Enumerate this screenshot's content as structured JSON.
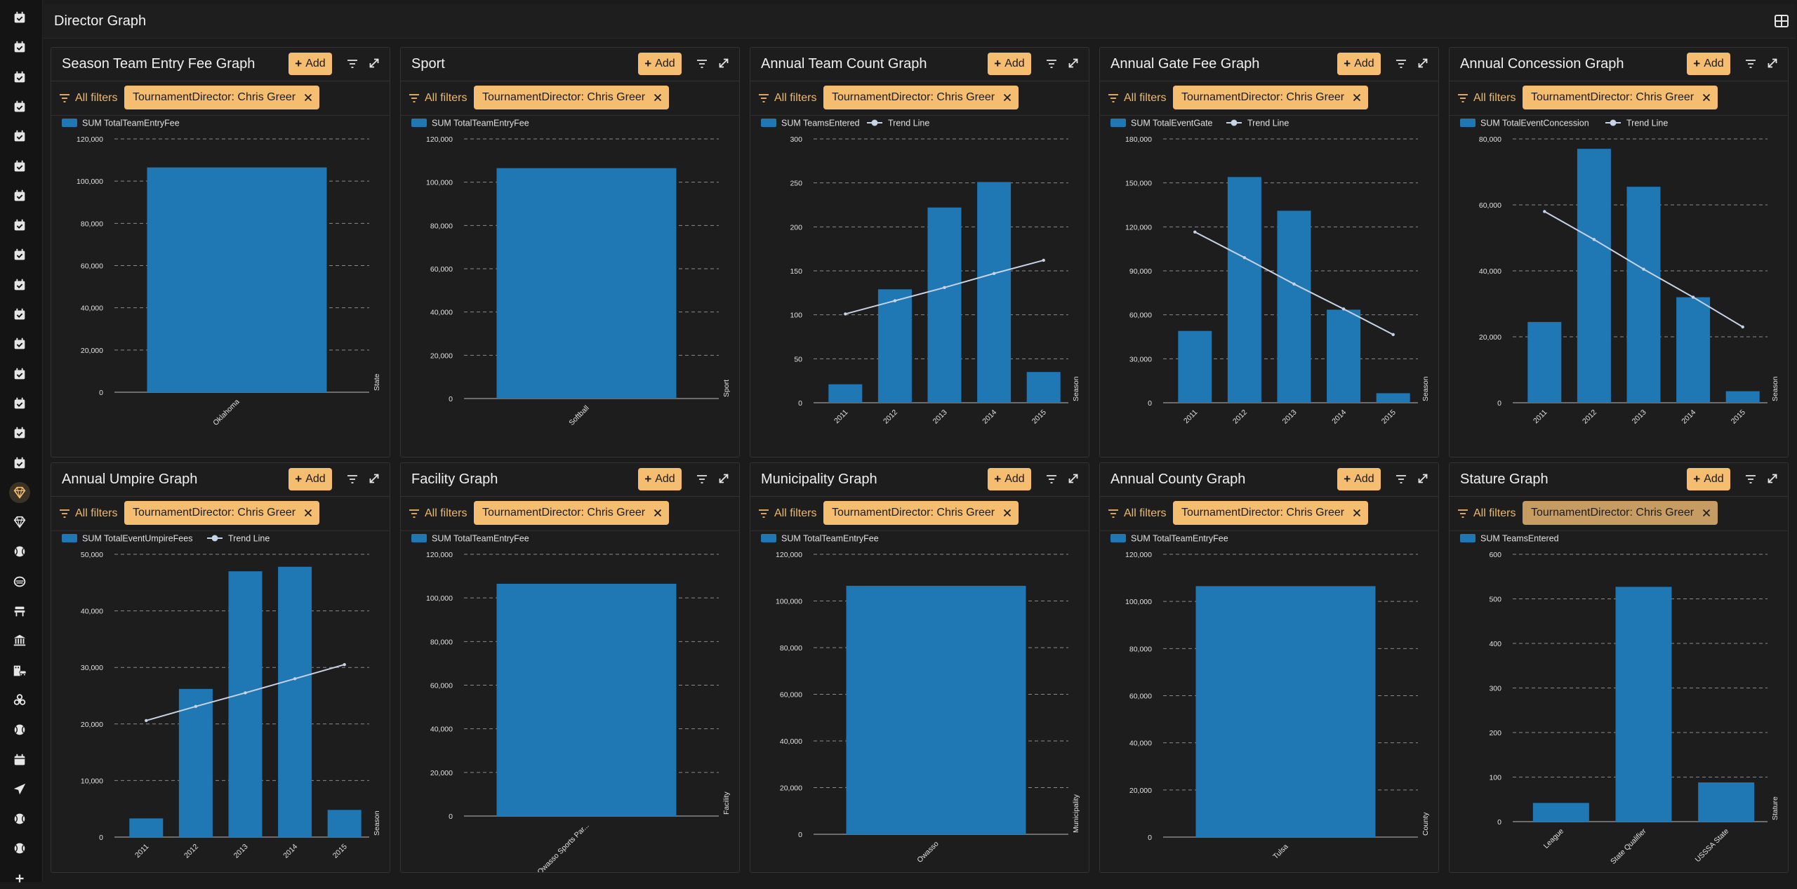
{
  "page": {
    "title": "Director Graph"
  },
  "theme": {
    "accent": "#f5bd6f",
    "bar": "#1f77b4",
    "trend": "#c7d3e6",
    "grid": "#8a8a8a"
  },
  "sidebar": {
    "items": [
      {
        "icon": "calendar-check-icon"
      },
      {
        "icon": "calendar-check-icon"
      },
      {
        "icon": "calendar-check-icon"
      },
      {
        "icon": "calendar-check-icon"
      },
      {
        "icon": "calendar-check-icon"
      },
      {
        "icon": "calendar-check-icon"
      },
      {
        "icon": "calendar-check-icon"
      },
      {
        "icon": "calendar-check-icon"
      },
      {
        "icon": "calendar-check-icon"
      },
      {
        "icon": "calendar-check-icon"
      },
      {
        "icon": "calendar-check-icon"
      },
      {
        "icon": "calendar-check-icon"
      },
      {
        "icon": "calendar-check-icon"
      },
      {
        "icon": "calendar-check-icon"
      },
      {
        "icon": "calendar-check-icon"
      },
      {
        "icon": "calendar-check-icon"
      },
      {
        "icon": "diamond-icon",
        "active": true
      },
      {
        "icon": "diamond-icon"
      },
      {
        "icon": "ball-icon"
      },
      {
        "icon": "mask-icon"
      },
      {
        "icon": "bench-icon"
      },
      {
        "icon": "bank-icon"
      },
      {
        "icon": "building-car-icon"
      },
      {
        "icon": "biohazard-icon"
      },
      {
        "icon": "ball-icon"
      },
      {
        "icon": "calendar-icon"
      },
      {
        "icon": "send-icon"
      },
      {
        "icon": "ball-icon"
      },
      {
        "icon": "ball-icon"
      },
      {
        "icon": "plus-icon"
      }
    ]
  },
  "common": {
    "add_label": "Add",
    "all_filters_label": "All filters",
    "filter_chip": "TournamentDirector: Chris Greer"
  },
  "panels": [
    {
      "title": "Season Team Entry Fee Graph",
      "chart_data": {
        "type": "bar",
        "categories": [
          "Oklahoma"
        ],
        "x_axis_name": "State",
        "series": [
          {
            "name": "SUM TotalTeamEntryFee",
            "values": [
              106500
            ]
          }
        ],
        "ylim": [
          0,
          120000
        ],
        "yticks": [
          0,
          20000,
          40000,
          60000,
          80000,
          100000,
          120000
        ],
        "grid": true,
        "legend": "top-left"
      }
    },
    {
      "title": "Sport",
      "chart_data": {
        "type": "bar",
        "categories": [
          "Softball"
        ],
        "x_axis_name": "Sport",
        "series": [
          {
            "name": "SUM TotalTeamEntryFee",
            "values": [
              106500
            ]
          }
        ],
        "ylim": [
          0,
          120000
        ],
        "yticks": [
          0,
          20000,
          40000,
          60000,
          80000,
          100000,
          120000
        ],
        "grid": true,
        "legend": "top-left"
      }
    },
    {
      "title": "Annual Team Count Graph",
      "chart_data": {
        "type": "bar",
        "categories": [
          "2011",
          "2012",
          "2013",
          "2014",
          "2015"
        ],
        "x_axis_name": "Season",
        "series": [
          {
            "name": "SUM TeamsEntered",
            "values": [
              21,
              129,
              222,
              251,
              35
            ]
          }
        ],
        "trend": {
          "name": "Trend Line",
          "values": [
            101,
            116,
            131,
            147,
            162
          ]
        },
        "ylim": [
          0,
          300
        ],
        "yticks": [
          0,
          50,
          100,
          150,
          200,
          250,
          300
        ],
        "grid": true,
        "legend": "top-left"
      }
    },
    {
      "title": "Annual Gate Fee Graph",
      "chart_data": {
        "type": "bar",
        "categories": [
          "2011",
          "2012",
          "2013",
          "2014",
          "2015"
        ],
        "x_axis_name": "Season",
        "series": [
          {
            "name": "SUM TotalEventGate",
            "values": [
              49000,
              154000,
              131000,
              63500,
              6500
            ]
          }
        ],
        "trend": {
          "name": "Trend Line",
          "values": [
            116500,
            99000,
            81000,
            64000,
            46500
          ]
        },
        "ylim": [
          0,
          180000
        ],
        "yticks": [
          0,
          30000,
          60000,
          90000,
          120000,
          150000,
          180000
        ],
        "grid": true,
        "legend": "top-left"
      }
    },
    {
      "title": "Annual Concession Graph",
      "chart_data": {
        "type": "bar",
        "categories": [
          "2011",
          "2012",
          "2013",
          "2014",
          "2015"
        ],
        "x_axis_name": "Season",
        "series": [
          {
            "name": "SUM TotalEventConcession",
            "values": [
              24500,
              77000,
              65500,
              32000,
              3500
            ]
          }
        ],
        "trend": {
          "name": "Trend Line",
          "values": [
            58000,
            49500,
            40500,
            32000,
            23000
          ]
        },
        "ylim": [
          0,
          80000
        ],
        "yticks": [
          0,
          20000,
          40000,
          60000,
          80000
        ],
        "grid": true,
        "legend": "top-left"
      }
    },
    {
      "title": "Annual Umpire Graph",
      "chart_data": {
        "type": "bar",
        "categories": [
          "2011",
          "2012",
          "2013",
          "2014",
          "2015"
        ],
        "x_axis_name": "Season",
        "series": [
          {
            "name": "SUM TotalEventUmpireFees",
            "values": [
              3300,
              26200,
              47000,
              47800,
              4800
            ]
          }
        ],
        "trend": {
          "name": "Trend Line",
          "values": [
            20600,
            23100,
            25500,
            28000,
            30500
          ]
        },
        "ylim": [
          0,
          50000
        ],
        "yticks": [
          0,
          10000,
          20000,
          30000,
          40000,
          50000
        ],
        "grid": true,
        "legend": "top-left"
      }
    },
    {
      "title": "Facility Graph",
      "chart_data": {
        "type": "bar",
        "categories": [
          "Owasso Sports Par..."
        ],
        "x_axis_name": "Facility",
        "series": [
          {
            "name": "SUM TotalTeamEntryFee",
            "values": [
              106500
            ]
          }
        ],
        "ylim": [
          0,
          120000
        ],
        "yticks": [
          0,
          20000,
          40000,
          60000,
          80000,
          100000,
          120000
        ],
        "grid": true,
        "legend": "top-left"
      }
    },
    {
      "title": "Municipality Graph",
      "chart_data": {
        "type": "bar",
        "categories": [
          "Owasso"
        ],
        "x_axis_name": "Municipality",
        "series": [
          {
            "name": "SUM TotalTeamEntryFee",
            "values": [
              106500
            ]
          }
        ],
        "ylim": [
          0,
          120000
        ],
        "yticks": [
          0,
          20000,
          40000,
          60000,
          80000,
          100000,
          120000
        ],
        "grid": true,
        "legend": "top-left"
      }
    },
    {
      "title": "Annual County Graph",
      "chart_data": {
        "type": "bar",
        "categories": [
          "Tulsa"
        ],
        "x_axis_name": "County",
        "series": [
          {
            "name": "SUM TotalTeamEntryFee",
            "values": [
              106500
            ]
          }
        ],
        "ylim": [
          0,
          120000
        ],
        "yticks": [
          0,
          20000,
          40000,
          60000,
          80000,
          100000,
          120000
        ],
        "grid": true,
        "legend": "top-left"
      }
    },
    {
      "title": "Stature Graph",
      "chart_data": {
        "type": "bar",
        "categories": [
          "League",
          "State Qualifier",
          "USSSA State"
        ],
        "x_axis_name": "Stature",
        "series": [
          {
            "name": "SUM TeamsEntered",
            "values": [
              42,
              527,
              88
            ]
          }
        ],
        "ylim": [
          0,
          600
        ],
        "yticks": [
          0,
          100,
          200,
          300,
          400,
          500,
          600
        ],
        "grid": true,
        "legend": "top-left"
      }
    }
  ]
}
